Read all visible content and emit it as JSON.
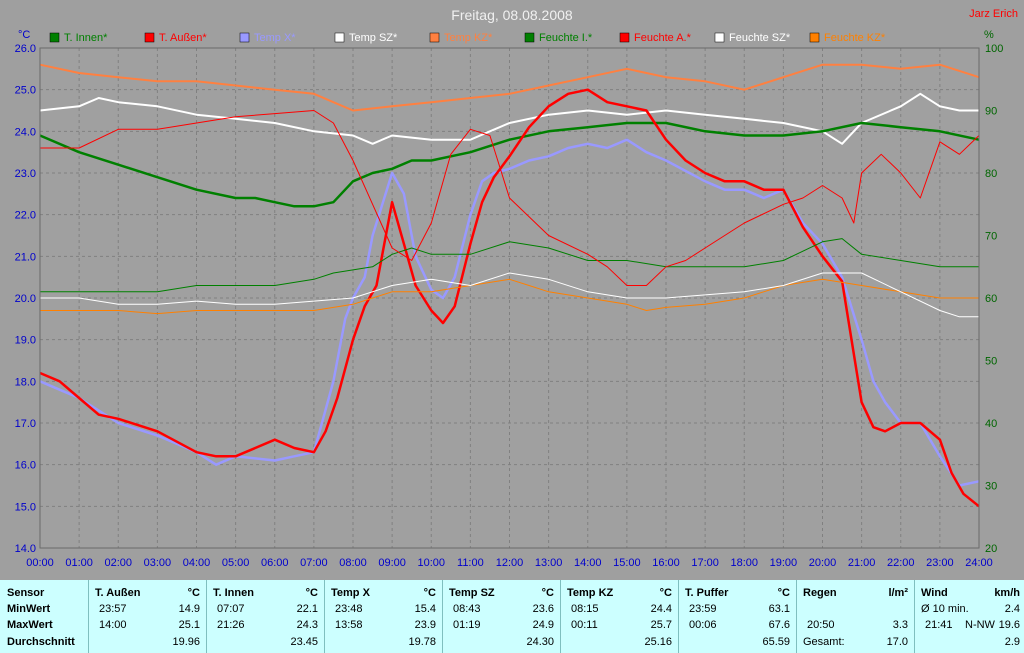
{
  "title": "Freitag, 08.08.2008",
  "author": "Jarz Erich",
  "colors": {
    "plot_bg": "#a0a0a0",
    "grid": "#808080",
    "left_axis": "#0000cc",
    "right_axis": "#006600"
  },
  "chart_data": {
    "type": "line",
    "left_unit": "°C",
    "right_unit": "%",
    "ylim_left": [
      14.0,
      26.0
    ],
    "ylim_right": [
      20,
      100
    ],
    "y_ticks_left": [
      "14.0",
      "15.0",
      "16.0",
      "17.0",
      "18.0",
      "19.0",
      "20.0",
      "21.0",
      "22.0",
      "23.0",
      "24.0",
      "25.0",
      "26.0"
    ],
    "y_ticks_right": [
      "20",
      "30",
      "40",
      "50",
      "60",
      "70",
      "80",
      "90",
      "100"
    ],
    "x_ticks": [
      "00:00",
      "01:00",
      "02:00",
      "03:00",
      "04:00",
      "05:00",
      "06:00",
      "07:00",
      "08:00",
      "09:00",
      "10:00",
      "11:00",
      "12:00",
      "13:00",
      "14:00",
      "15:00",
      "16:00",
      "17:00",
      "18:00",
      "19:00",
      "20:00",
      "21:00",
      "22:00",
      "23:00",
      "24:00"
    ],
    "legend": [
      {
        "name": "T. Innen*",
        "color": "#008000"
      },
      {
        "name": "T. Außen*",
        "color": "#ff0000"
      },
      {
        "name": "Temp X*",
        "color": "#9999ff"
      },
      {
        "name": "Temp SZ*",
        "color": "#ffffff"
      },
      {
        "name": "Temp KZ*",
        "color": "#ff8040"
      },
      {
        "name": "Feuchte I.*",
        "color": "#008000"
      },
      {
        "name": "Feuchte A.*",
        "color": "#ff0000"
      },
      {
        "name": "Feuchte SZ*",
        "color": "#ffffff"
      },
      {
        "name": "Feuchte KZ*",
        "color": "#ff8000"
      }
    ],
    "series": [
      {
        "name": "Temp KZ*",
        "axis": "left",
        "color": "#ff8040",
        "width": 2,
        "x": [
          0,
          1,
          2,
          3,
          4,
          5,
          6,
          7,
          7.5,
          8,
          9,
          10,
          11,
          12,
          13,
          14,
          15,
          16,
          17,
          18,
          19,
          20,
          21,
          22,
          23,
          24
        ],
        "y": [
          25.6,
          25.4,
          25.3,
          25.2,
          25.2,
          25.1,
          25.0,
          24.9,
          24.7,
          24.5,
          24.6,
          24.7,
          24.8,
          24.9,
          25.1,
          25.3,
          25.5,
          25.3,
          25.2,
          25.0,
          25.3,
          25.6,
          25.6,
          25.5,
          25.6,
          25.3
        ]
      },
      {
        "name": "Temp SZ*",
        "axis": "left",
        "color": "#ffffff",
        "width": 2,
        "x": [
          0,
          1,
          1.5,
          2,
          3,
          4,
          5,
          6,
          7,
          8,
          8.5,
          9,
          10,
          11,
          11.5,
          12,
          13,
          14,
          15,
          16,
          17,
          18,
          19,
          20,
          20.5,
          21,
          22,
          22.5,
          23,
          23.5,
          24
        ],
        "y": [
          24.5,
          24.6,
          24.8,
          24.7,
          24.6,
          24.4,
          24.3,
          24.2,
          24.0,
          23.9,
          23.7,
          23.9,
          23.8,
          23.8,
          24.0,
          24.2,
          24.4,
          24.5,
          24.4,
          24.5,
          24.4,
          24.3,
          24.2,
          24.0,
          23.7,
          24.2,
          24.6,
          24.9,
          24.6,
          24.5,
          24.5
        ]
      },
      {
        "name": "T. Innen*",
        "axis": "left",
        "color": "#008000",
        "width": 2.5,
        "x": [
          0,
          1,
          2,
          3,
          4,
          5,
          5.5,
          6,
          6.5,
          7,
          7.5,
          8,
          8.5,
          9,
          9.5,
          10,
          11,
          12,
          13,
          14,
          15,
          15.5,
          16,
          17,
          18,
          19,
          20,
          21,
          22,
          23,
          24
        ],
        "y": [
          23.9,
          23.5,
          23.2,
          22.9,
          22.6,
          22.4,
          22.4,
          22.3,
          22.2,
          22.2,
          22.3,
          22.8,
          23.0,
          23.1,
          23.3,
          23.3,
          23.5,
          23.8,
          24.0,
          24.1,
          24.2,
          24.2,
          24.2,
          24.0,
          23.9,
          23.9,
          24.0,
          24.2,
          24.1,
          24.0,
          23.8
        ]
      },
      {
        "name": "Temp X*",
        "axis": "left",
        "color": "#9999ff",
        "width": 2.5,
        "x": [
          0,
          0.5,
          1,
          1.5,
          2,
          3,
          4,
          4.5,
          5,
          6,
          6.5,
          7,
          7.5,
          7.8,
          8,
          8.3,
          8.5,
          9,
          9.3,
          9.6,
          10,
          10.3,
          10.6,
          11,
          11.3,
          11.6,
          12,
          12.5,
          13,
          13.5,
          14,
          14.5,
          15,
          15.5,
          16,
          17,
          17.5,
          18,
          18.5,
          19,
          19.5,
          20,
          20.5,
          21,
          21.3,
          21.6,
          22,
          22.5,
          23,
          23.5,
          24
        ],
        "y": [
          18.0,
          17.8,
          17.6,
          17.3,
          17.0,
          16.7,
          16.3,
          16.0,
          16.2,
          16.1,
          16.2,
          16.3,
          18.0,
          19.5,
          20.0,
          20.5,
          21.5,
          23.0,
          22.5,
          21.0,
          20.2,
          20.0,
          20.5,
          22.0,
          22.8,
          23.0,
          23.1,
          23.3,
          23.4,
          23.6,
          23.7,
          23.6,
          23.8,
          23.5,
          23.3,
          22.8,
          22.6,
          22.6,
          22.4,
          22.6,
          21.8,
          21.3,
          20.5,
          19.0,
          18.0,
          17.5,
          17.0,
          17.0,
          16.2,
          15.5,
          15.6
        ]
      },
      {
        "name": "T. Außen*",
        "axis": "left",
        "color": "#ff0000",
        "width": 2.5,
        "x": [
          0,
          0.5,
          1,
          1.5,
          2,
          3,
          4,
          4.5,
          5,
          5.5,
          6,
          6.5,
          7,
          7.3,
          7.6,
          8,
          8.3,
          8.6,
          9,
          9.3,
          9.6,
          10,
          10.3,
          10.6,
          11,
          11.3,
          11.6,
          12,
          12.5,
          13,
          13.5,
          14,
          14.5,
          15,
          15.5,
          16,
          16.5,
          17,
          17.5,
          18,
          18.5,
          19,
          19.5,
          20,
          20.5,
          21,
          21.3,
          21.6,
          22,
          22.5,
          23,
          23.3,
          23.6,
          24
        ],
        "y": [
          18.2,
          18.0,
          17.6,
          17.2,
          17.1,
          16.8,
          16.3,
          16.2,
          16.2,
          16.4,
          16.6,
          16.4,
          16.3,
          16.8,
          17.6,
          19.0,
          19.8,
          20.3,
          22.3,
          21.3,
          20.3,
          19.7,
          19.4,
          19.8,
          21.3,
          22.3,
          22.9,
          23.4,
          24.1,
          24.6,
          24.9,
          25.0,
          24.7,
          24.6,
          24.5,
          23.8,
          23.3,
          23.0,
          22.8,
          22.8,
          22.6,
          22.6,
          21.7,
          21.0,
          20.4,
          17.5,
          16.9,
          16.8,
          17.0,
          17.0,
          16.6,
          15.8,
          15.3,
          15.0
        ]
      },
      {
        "name": "Feuchte KZ*",
        "axis": "right",
        "color": "#ff8000",
        "width": 1,
        "x": [
          0,
          1,
          2,
          3,
          4,
          5,
          6,
          7,
          8,
          8.5,
          9,
          10,
          11,
          12,
          12.5,
          13,
          14,
          15,
          15.5,
          16,
          17,
          18,
          19,
          20,
          21,
          22,
          23,
          24
        ],
        "y": [
          58,
          58,
          58,
          57.5,
          58,
          58,
          58,
          58,
          59,
          60,
          61,
          61,
          62,
          63,
          62,
          61,
          60,
          59,
          58,
          58.5,
          59,
          60,
          62,
          63,
          62,
          61,
          60,
          60
        ]
      },
      {
        "name": "Feuchte SZ*",
        "axis": "right",
        "color": "#ffffff",
        "width": 1,
        "x": [
          0,
          1,
          2,
          3,
          4,
          5,
          6,
          7,
          8,
          9,
          10,
          11,
          12,
          13,
          14,
          15,
          16,
          17,
          18,
          19,
          20,
          21,
          22,
          23,
          23.5,
          24
        ],
        "y": [
          60,
          60,
          59,
          59,
          59.5,
          59,
          59,
          59.5,
          60,
          62,
          63,
          62,
          64,
          63,
          61,
          60,
          60,
          60.5,
          61,
          62,
          64,
          64,
          61,
          58,
          57,
          57
        ]
      },
      {
        "name": "Feuchte I.*",
        "axis": "right",
        "color": "#008000",
        "width": 1,
        "x": [
          0,
          1,
          2,
          3,
          4,
          5,
          6,
          7,
          7.5,
          8,
          8.5,
          9,
          9.5,
          10,
          11,
          12,
          13,
          14,
          15,
          16,
          17,
          18,
          19,
          20,
          20.5,
          21,
          22,
          23,
          24
        ],
        "y": [
          61,
          61,
          61,
          61,
          62,
          62,
          62,
          63,
          64,
          64.5,
          65,
          67,
          68,
          67,
          67,
          69,
          68,
          66,
          66,
          65,
          65,
          65,
          66,
          69,
          69.5,
          67,
          66,
          65,
          65
        ]
      },
      {
        "name": "Feuchte A.*",
        "axis": "right",
        "color": "#ff0000",
        "width": 1,
        "x": [
          0,
          1,
          2,
          3,
          4,
          4.5,
          5,
          6,
          7,
          7.5,
          8,
          8.5,
          9,
          9.5,
          10,
          10.5,
          11,
          11.5,
          12,
          13,
          14,
          14.5,
          15,
          15.5,
          16,
          16.5,
          17,
          18,
          19,
          19.5,
          20,
          20.5,
          20.8,
          21,
          21.5,
          22,
          22.5,
          23,
          23.5,
          24
        ],
        "y": [
          84,
          84,
          87,
          87,
          88,
          88.5,
          89,
          89.5,
          90,
          88,
          82,
          75,
          68,
          66,
          72,
          83,
          87,
          86,
          76,
          70,
          67,
          65,
          62,
          62,
          65,
          66,
          68,
          72,
          75,
          76,
          78,
          76,
          72,
          80,
          83,
          80,
          76,
          85,
          83,
          86
        ]
      }
    ]
  },
  "stats": {
    "row_labels": {
      "header": "Sensor",
      "min": "MinWert",
      "max": "MaxWert",
      "avg": "Durchschnitt"
    },
    "blocks": [
      {
        "name": "T. Außen",
        "unit": "°C",
        "min_time": "23:57",
        "min_val": "14.9",
        "max_time": "14:00",
        "max_val": "25.1",
        "avg": "19.96"
      },
      {
        "name": "T. Innen",
        "unit": "°C",
        "min_time": "07:07",
        "min_val": "22.1",
        "max_time": "21:26",
        "max_val": "24.3",
        "avg": "23.45"
      },
      {
        "name": "Temp X",
        "unit": "°C",
        "min_time": "23:48",
        "min_val": "15.4",
        "max_time": "13:58",
        "max_val": "23.9",
        "avg": "19.78"
      },
      {
        "name": "Temp SZ",
        "unit": "°C",
        "min_time": "08:43",
        "min_val": "23.6",
        "max_time": "01:19",
        "max_val": "24.9",
        "avg": "24.30"
      },
      {
        "name": "Temp KZ",
        "unit": "°C",
        "min_time": "08:15",
        "min_val": "24.4",
        "max_time": "00:11",
        "max_val": "25.7",
        "avg": "25.16"
      },
      {
        "name": "T. Puffer",
        "unit": "°C",
        "min_time": "23:59",
        "min_val": "63.1",
        "max_time": "00:06",
        "max_val": "67.6",
        "avg": "65.59"
      }
    ],
    "regen": {
      "name": "Regen",
      "unit": "l/m²",
      "min_time": "",
      "min_val": "",
      "max_time": "20:50",
      "max_val": "3.3",
      "avg_label": "Gesamt:",
      "avg": "17.0"
    },
    "wind": {
      "name": "Wind",
      "unit": "km/h",
      "min_label": "Ø 10 min.",
      "min_val": "2.4",
      "max_time": "21:41",
      "max_dir": "N-NW",
      "max_val": "19.6",
      "avg": "2.9"
    }
  }
}
